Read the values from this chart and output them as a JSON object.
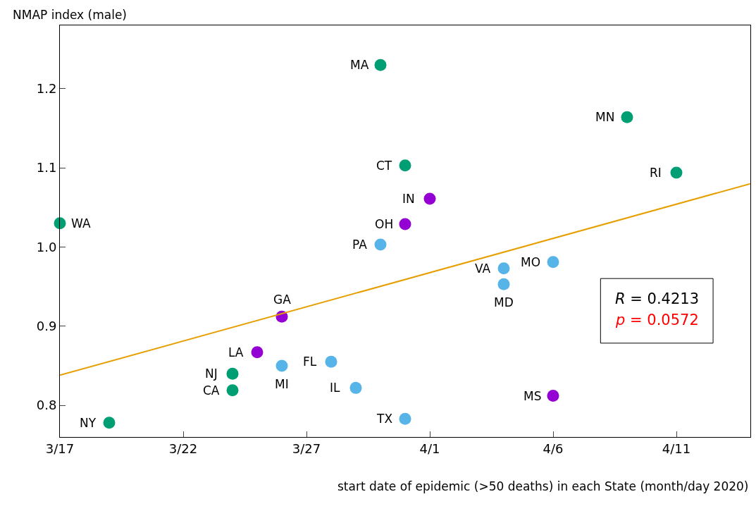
{
  "chart_data": {
    "type": "scatter",
    "xlabel": "start date of epidemic (>50 deaths) in each State (month/day 2020)",
    "ylabel": "NMAP index (male)",
    "xlim": [
      "2020-03-17",
      "2020-04-14"
    ],
    "xticks": [
      {
        "value": "2020-03-17",
        "label": "3/17"
      },
      {
        "value": "2020-03-22",
        "label": "3/22"
      },
      {
        "value": "2020-03-27",
        "label": "3/27"
      },
      {
        "value": "2020-04-01",
        "label": "4/1"
      },
      {
        "value": "2020-04-06",
        "label": "4/6"
      },
      {
        "value": "2020-04-11",
        "label": "4/11"
      }
    ],
    "ylim": [
      0.76,
      1.28
    ],
    "yticks": [
      {
        "value": 0.8,
        "label": "0.8"
      },
      {
        "value": 0.9,
        "label": "0.9"
      },
      {
        "value": 1.0,
        "label": "1.0"
      },
      {
        "value": 1.1,
        "label": "1.1"
      },
      {
        "value": 1.2,
        "label": "1.2"
      }
    ],
    "marker": "circle",
    "series": [
      {
        "color": "#009e73",
        "x": [
          "2020-03-17",
          "2020-03-19",
          "2020-03-24",
          "2020-03-24",
          "2020-03-30",
          "2020-03-31",
          "2020-04-09",
          "2020-04-11"
        ],
        "values": [
          1.03,
          0.778,
          0.819,
          0.84,
          1.23,
          1.103,
          1.164,
          1.094
        ]
      },
      {
        "color": "#9400d3",
        "x": [
          "2020-03-25",
          "2020-03-26",
          "2020-04-01",
          "2020-03-31",
          "2020-04-06"
        ],
        "values": [
          0.867,
          0.912,
          1.061,
          1.029,
          0.812
        ]
      },
      {
        "color": "#56b4e9",
        "x": [
          "2020-03-26",
          "2020-03-28",
          "2020-03-29",
          "2020-03-30",
          "2020-03-31",
          "2020-04-04",
          "2020-04-04",
          "2020-04-06"
        ],
        "values": [
          0.85,
          0.855,
          0.822,
          1.003,
          0.783,
          0.973,
          0.953,
          0.981
        ]
      },
      {
        "type": "line",
        "marker": "none",
        "color": "#e69f00",
        "x": [
          "2020-03-17",
          "2020-04-14"
        ],
        "values": [
          0.838,
          1.08
        ]
      }
    ],
    "annotations": [
      {
        "text": "WA",
        "x": "2020-03-17",
        "y": 1.03
      },
      {
        "text": "NY",
        "x": "2020-03-19",
        "y": 0.778
      },
      {
        "text": "CA",
        "x": "2020-03-24",
        "y": 0.819
      },
      {
        "text": "NJ",
        "x": "2020-03-24",
        "y": 0.84
      },
      {
        "text": "MA",
        "x": "2020-03-30",
        "y": 1.23
      },
      {
        "text": "CT",
        "x": "2020-03-31",
        "y": 1.103
      },
      {
        "text": "MN",
        "x": "2020-04-09",
        "y": 1.164
      },
      {
        "text": "RI",
        "x": "2020-04-11",
        "y": 1.094
      },
      {
        "text": "LA",
        "x": "2020-03-25",
        "y": 0.867
      },
      {
        "text": "GA",
        "x": "2020-03-26",
        "y": 0.912
      },
      {
        "text": "IN",
        "x": "2020-04-01",
        "y": 1.061
      },
      {
        "text": "OH",
        "x": "2020-03-31",
        "y": 1.029
      },
      {
        "text": "MS",
        "x": "2020-04-06",
        "y": 0.812
      },
      {
        "text": "MI",
        "x": "2020-03-26",
        "y": 0.85
      },
      {
        "text": "FL",
        "x": "2020-03-28",
        "y": 0.855
      },
      {
        "text": "IL",
        "x": "2020-03-29",
        "y": 0.822
      },
      {
        "text": "PA",
        "x": "2020-03-30",
        "y": 1.003
      },
      {
        "text": "TX",
        "x": "2020-03-31",
        "y": 0.783
      },
      {
        "text": "VA",
        "x": "2020-04-04",
        "y": 0.973
      },
      {
        "text": "MD",
        "x": "2020-04-04",
        "y": 0.953
      },
      {
        "text": "MO",
        "x": "2020-04-06",
        "y": 0.981
      },
      "R = 0.4213",
      "p = 0.0572"
    ]
  }
}
